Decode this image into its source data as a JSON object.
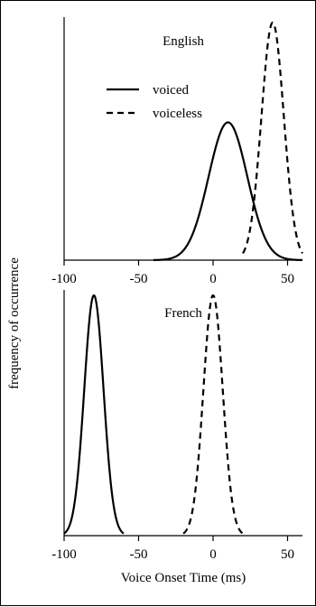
{
  "chart_data": [
    {
      "type": "line",
      "title": "English",
      "xlabel": "",
      "ylabel": "frequency of occurrence",
      "xlim": [
        -100,
        60
      ],
      "xticks": [
        -100,
        -50,
        0,
        50
      ],
      "x_tick_labels": [
        "-100",
        "-50",
        "0",
        "50"
      ],
      "legend": {
        "position": "upper-left",
        "entries": [
          {
            "label": "voiced",
            "style": "solid"
          },
          {
            "label": "voiceless",
            "style": "dashed"
          }
        ]
      },
      "series": [
        {
          "name": "voiced",
          "distribution": "gaussian",
          "mean": 10,
          "sd": 13,
          "peak": 0.58,
          "x_range": [
            -40,
            60
          ],
          "style": "solid"
        },
        {
          "name": "voiceless",
          "distribution": "gaussian",
          "mean": 40,
          "sd": 7.5,
          "peak": 1.0,
          "x_range": [
            20,
            60
          ],
          "style": "dashed"
        }
      ],
      "grid": false
    },
    {
      "type": "line",
      "title": "French",
      "xlabel": "Voice Onset Time (ms)",
      "ylabel": "frequency of occurrence",
      "xlim": [
        -100,
        60
      ],
      "xticks": [
        -100,
        -50,
        0,
        50
      ],
      "x_tick_labels": [
        "-100",
        "-50",
        "0",
        "50"
      ],
      "series": [
        {
          "name": "voiced",
          "distribution": "gaussian",
          "mean": -80,
          "sd": 6.5,
          "peak": 1.0,
          "x_range": [
            -100,
            -60
          ],
          "style": "solid"
        },
        {
          "name": "voiceless",
          "distribution": "gaussian",
          "mean": 0,
          "sd": 6.5,
          "peak": 1.0,
          "x_range": [
            -20,
            20
          ],
          "style": "dashed"
        }
      ],
      "grid": false
    }
  ]
}
